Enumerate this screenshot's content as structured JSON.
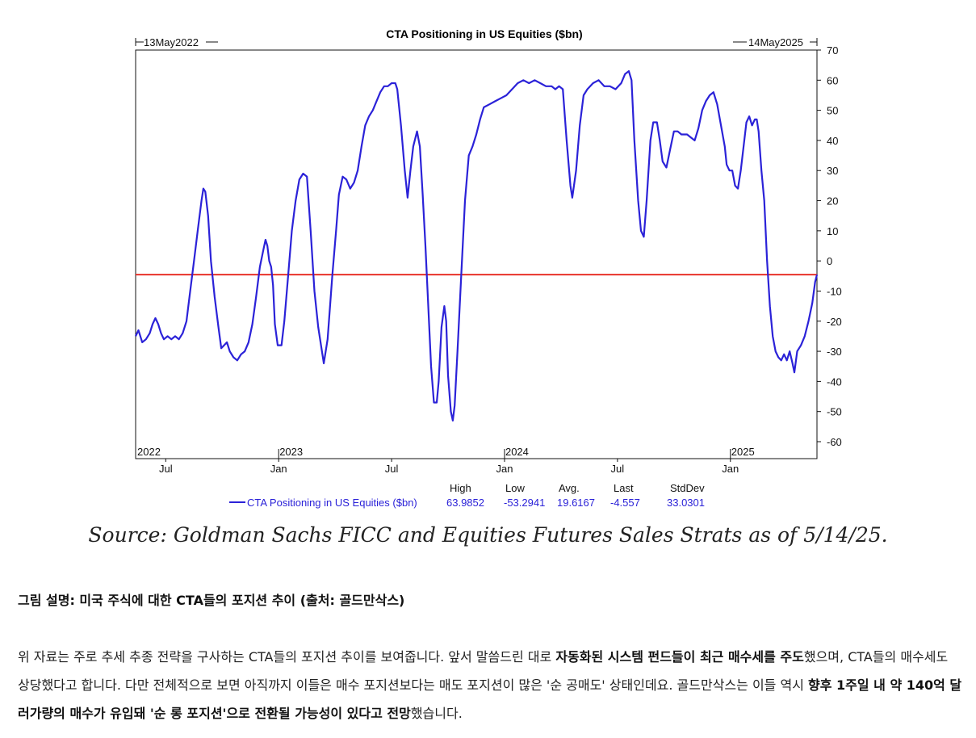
{
  "chart_data": {
    "type": "line",
    "title": "CTA Positioning in US Equities ($bn)",
    "start_marker": "13May2022",
    "end_marker": "14May2025",
    "ylim": [
      -65,
      70
    ],
    "yticks": [
      70,
      60,
      50,
      40,
      30,
      20,
      10,
      0,
      -10,
      -20,
      -30,
      -40,
      -50,
      -60
    ],
    "year_labels": [
      {
        "label": "2022",
        "t": 0.0
      },
      {
        "label": "2023",
        "t": 7.6
      },
      {
        "label": "2024",
        "t": 19.6
      },
      {
        "label": "2025",
        "t": 31.6
      }
    ],
    "month_labels": [
      {
        "label": "Jul",
        "t": 1.6
      },
      {
        "label": "Jan",
        "t": 7.6
      },
      {
        "label": "Jul",
        "t": 13.6
      },
      {
        "label": "Jan",
        "t": 19.6
      },
      {
        "label": "Jul",
        "t": 25.6
      },
      {
        "label": "Jan",
        "t": 31.6
      }
    ],
    "reference_line": {
      "value": -4.557,
      "color": "#e8322a"
    },
    "series": [
      {
        "name": "CTA Positioning in US Equities ($bn)",
        "color": "#2b22d8",
        "points": [
          [
            0.0,
            -25
          ],
          [
            0.15,
            -23
          ],
          [
            0.35,
            -27
          ],
          [
            0.55,
            -26
          ],
          [
            0.75,
            -24
          ],
          [
            0.9,
            -21
          ],
          [
            1.05,
            -19
          ],
          [
            1.2,
            -21
          ],
          [
            1.35,
            -24
          ],
          [
            1.5,
            -26
          ],
          [
            1.7,
            -25
          ],
          [
            1.9,
            -26
          ],
          [
            2.1,
            -25
          ],
          [
            2.3,
            -26
          ],
          [
            2.5,
            -24
          ],
          [
            2.7,
            -20
          ],
          [
            2.9,
            -10
          ],
          [
            3.1,
            0
          ],
          [
            3.3,
            10
          ],
          [
            3.5,
            20
          ],
          [
            3.6,
            24
          ],
          [
            3.7,
            23
          ],
          [
            3.85,
            15
          ],
          [
            4.0,
            0
          ],
          [
            4.2,
            -12
          ],
          [
            4.4,
            -22
          ],
          [
            4.55,
            -29
          ],
          [
            4.7,
            -28
          ],
          [
            4.85,
            -27
          ],
          [
            5.0,
            -30
          ],
          [
            5.2,
            -32
          ],
          [
            5.4,
            -33
          ],
          [
            5.6,
            -31
          ],
          [
            5.8,
            -30
          ],
          [
            6.0,
            -27
          ],
          [
            6.2,
            -21
          ],
          [
            6.4,
            -12
          ],
          [
            6.6,
            -2
          ],
          [
            6.8,
            4
          ],
          [
            6.9,
            7
          ],
          [
            7.0,
            5
          ],
          [
            7.1,
            0
          ],
          [
            7.2,
            -2
          ],
          [
            7.3,
            -8
          ],
          [
            7.4,
            -21
          ],
          [
            7.55,
            -28
          ],
          [
            7.75,
            -28
          ],
          [
            7.9,
            -20
          ],
          [
            8.1,
            -5
          ],
          [
            8.3,
            10
          ],
          [
            8.5,
            20
          ],
          [
            8.7,
            27
          ],
          [
            8.9,
            29
          ],
          [
            9.1,
            28
          ],
          [
            9.3,
            10
          ],
          [
            9.5,
            -10
          ],
          [
            9.7,
            -22
          ],
          [
            9.9,
            -30
          ],
          [
            10.0,
            -34
          ],
          [
            10.2,
            -26
          ],
          [
            10.45,
            -5
          ],
          [
            10.65,
            10
          ],
          [
            10.8,
            22
          ],
          [
            11.0,
            28
          ],
          [
            11.2,
            27
          ],
          [
            11.4,
            24
          ],
          [
            11.6,
            26
          ],
          [
            11.8,
            30
          ],
          [
            12.0,
            38
          ],
          [
            12.2,
            45
          ],
          [
            12.4,
            48
          ],
          [
            12.6,
            50
          ],
          [
            12.8,
            53
          ],
          [
            13.0,
            56
          ],
          [
            13.2,
            58
          ],
          [
            13.4,
            58
          ],
          [
            13.6,
            59
          ],
          [
            13.8,
            59
          ],
          [
            13.9,
            57
          ],
          [
            14.1,
            45
          ],
          [
            14.3,
            30
          ],
          [
            14.45,
            21
          ],
          [
            14.6,
            30
          ],
          [
            14.75,
            38
          ],
          [
            14.95,
            43
          ],
          [
            15.1,
            38
          ],
          [
            15.25,
            22
          ],
          [
            15.4,
            5
          ],
          [
            15.55,
            -15
          ],
          [
            15.7,
            -35
          ],
          [
            15.85,
            -47
          ],
          [
            16.0,
            -47
          ],
          [
            16.1,
            -40
          ],
          [
            16.25,
            -22
          ],
          [
            16.4,
            -15
          ],
          [
            16.5,
            -20
          ],
          [
            16.6,
            -38
          ],
          [
            16.75,
            -50
          ],
          [
            16.85,
            -53
          ],
          [
            16.95,
            -48
          ],
          [
            17.1,
            -30
          ],
          [
            17.3,
            -5
          ],
          [
            17.5,
            20
          ],
          [
            17.7,
            35
          ],
          [
            17.9,
            38
          ],
          [
            18.1,
            42
          ],
          [
            18.3,
            47
          ],
          [
            18.5,
            51
          ],
          [
            18.8,
            52
          ],
          [
            19.1,
            53
          ],
          [
            19.4,
            54
          ],
          [
            19.7,
            55
          ],
          [
            20.0,
            57
          ],
          [
            20.3,
            59
          ],
          [
            20.6,
            60
          ],
          [
            20.9,
            59
          ],
          [
            21.2,
            60
          ],
          [
            21.5,
            59
          ],
          [
            21.8,
            58
          ],
          [
            22.1,
            58
          ],
          [
            22.3,
            57
          ],
          [
            22.5,
            58
          ],
          [
            22.7,
            57
          ],
          [
            22.9,
            40
          ],
          [
            23.1,
            25
          ],
          [
            23.2,
            21
          ],
          [
            23.4,
            30
          ],
          [
            23.6,
            45
          ],
          [
            23.8,
            55
          ],
          [
            24.0,
            57
          ],
          [
            24.3,
            59
          ],
          [
            24.6,
            60
          ],
          [
            24.9,
            58
          ],
          [
            25.2,
            58
          ],
          [
            25.5,
            57
          ],
          [
            25.8,
            59
          ],
          [
            26.0,
            62
          ],
          [
            26.2,
            63
          ],
          [
            26.35,
            60
          ],
          [
            26.5,
            40
          ],
          [
            26.7,
            20
          ],
          [
            26.85,
            10
          ],
          [
            27.0,
            8
          ],
          [
            27.15,
            20
          ],
          [
            27.35,
            40
          ],
          [
            27.5,
            46
          ],
          [
            27.7,
            46
          ],
          [
            27.85,
            40
          ],
          [
            28.0,
            33
          ],
          [
            28.2,
            31
          ],
          [
            28.4,
            37
          ],
          [
            28.6,
            43
          ],
          [
            28.8,
            43
          ],
          [
            29.0,
            42
          ],
          [
            29.3,
            42
          ],
          [
            29.5,
            41
          ],
          [
            29.7,
            40
          ],
          [
            29.9,
            44
          ],
          [
            30.1,
            50
          ],
          [
            30.3,
            53
          ],
          [
            30.5,
            55
          ],
          [
            30.7,
            56
          ],
          [
            30.9,
            52
          ],
          [
            31.1,
            45
          ],
          [
            31.3,
            38
          ],
          [
            31.4,
            32
          ],
          [
            31.55,
            30
          ],
          [
            31.7,
            30
          ],
          [
            31.85,
            25
          ],
          [
            32.0,
            24
          ],
          [
            32.15,
            30
          ],
          [
            32.3,
            38
          ],
          [
            32.45,
            46
          ],
          [
            32.6,
            48
          ],
          [
            32.75,
            45
          ],
          [
            32.9,
            47
          ],
          [
            33.0,
            47
          ],
          [
            33.1,
            43
          ],
          [
            33.25,
            30
          ],
          [
            33.4,
            20
          ],
          [
            33.55,
            0
          ],
          [
            33.7,
            -15
          ],
          [
            33.85,
            -25
          ],
          [
            34.0,
            -30
          ],
          [
            34.15,
            -32
          ],
          [
            34.3,
            -33
          ],
          [
            34.45,
            -31
          ],
          [
            34.6,
            -33
          ],
          [
            34.75,
            -30
          ],
          [
            34.9,
            -34
          ],
          [
            35.0,
            -37
          ],
          [
            35.15,
            -30
          ],
          [
            35.35,
            -28
          ],
          [
            35.55,
            -25
          ],
          [
            35.75,
            -20
          ],
          [
            35.95,
            -14
          ],
          [
            36.1,
            -7
          ],
          [
            36.2,
            -4.557
          ]
        ]
      }
    ],
    "stats": {
      "headers": [
        "High",
        "Low",
        "Avg.",
        "Last",
        "StdDev"
      ],
      "series_label": "CTA Positioning in US Equities ($bn)",
      "values": [
        "63.9852",
        "-53.2941",
        "19.6167",
        "-4.557",
        "33.0301"
      ]
    }
  },
  "source_text": "Source: Goldman Sachs FICC and Equities Futures Sales Strats as of 5/14/25.",
  "caption": "그림 설명: 미국 주식에 대한 CTA들의 포지션 추이 (출처: 골드만삭스)",
  "paragraph": {
    "p1": "위 자료는 주로 추세 추종 전략을 구사하는 CTA들의 포지션 추이를 보여줍니다. 앞서 말씀드린 대로 ",
    "b1": "자동화된 시스템 펀드들이 최근 매수세를 주도",
    "p2": "했으며, CTA들의 매수세도 상당했다고 합니다. 다만 전체적으로 보면 아직까지 이들은 매수 포지션보다는 매도 포지션이 많은 '순 공매도' 상태인데요. 골드만삭스는 이들 역시 ",
    "b2": "향후 1주일 내 약 140억 달러가량의 매수가 유입돼 '순 롱 포지션'으로 전환될 가능성이 있다고 전망",
    "p3": "했습니다."
  }
}
